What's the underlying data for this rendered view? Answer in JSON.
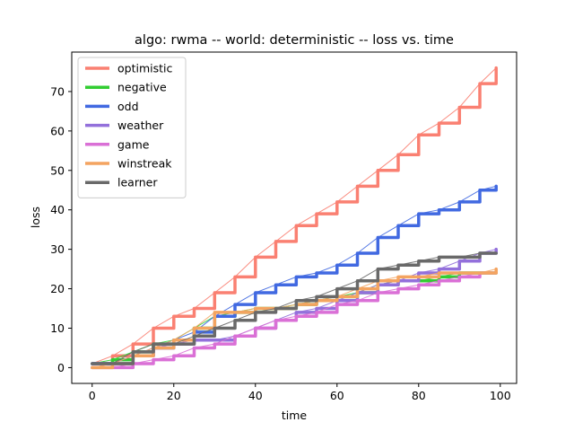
{
  "chart_data": {
    "type": "line",
    "title": "algo: rwma -- world: deterministic -- loss vs. time",
    "xlabel": "time",
    "ylabel": "loss",
    "xlim": [
      -5,
      104
    ],
    "ylim": [
      -4,
      80
    ],
    "xticks": [
      0,
      20,
      40,
      60,
      80,
      100
    ],
    "yticks": [
      0,
      10,
      20,
      30,
      40,
      50,
      60,
      70
    ],
    "grid": false,
    "legend_position": "upper-left",
    "series": [
      {
        "name": "optimistic",
        "color": "#fa8072",
        "points": [
          [
            0,
            1
          ],
          [
            5,
            3
          ],
          [
            10,
            6
          ],
          [
            15,
            10
          ],
          [
            20,
            13
          ],
          [
            25,
            15
          ],
          [
            30,
            19
          ],
          [
            35,
            23
          ],
          [
            40,
            28
          ],
          [
            45,
            32
          ],
          [
            50,
            36
          ],
          [
            55,
            39
          ],
          [
            60,
            42
          ],
          [
            65,
            46
          ],
          [
            70,
            50
          ],
          [
            75,
            54
          ],
          [
            80,
            59
          ],
          [
            85,
            62
          ],
          [
            90,
            66
          ],
          [
            95,
            72
          ],
          [
            99,
            76
          ]
        ]
      },
      {
        "name": "negative",
        "color": "#32cd32",
        "points": [
          [
            0,
            1
          ],
          [
            5,
            2
          ],
          [
            10,
            4
          ],
          [
            15,
            6
          ],
          [
            20,
            7
          ],
          [
            25,
            10
          ],
          [
            30,
            13
          ],
          [
            35,
            14
          ],
          [
            40,
            15
          ],
          [
            45,
            15
          ],
          [
            50,
            16
          ],
          [
            55,
            17
          ],
          [
            60,
            18
          ],
          [
            65,
            19
          ],
          [
            70,
            21
          ],
          [
            75,
            22
          ],
          [
            80,
            22
          ],
          [
            85,
            23
          ],
          [
            90,
            24
          ],
          [
            95,
            24
          ],
          [
            99,
            24
          ]
        ]
      },
      {
        "name": "odd",
        "color": "#4169e1",
        "points": [
          [
            0,
            1
          ],
          [
            5,
            1
          ],
          [
            10,
            3
          ],
          [
            15,
            5
          ],
          [
            20,
            7
          ],
          [
            25,
            9
          ],
          [
            30,
            13
          ],
          [
            35,
            16
          ],
          [
            40,
            19
          ],
          [
            45,
            21
          ],
          [
            50,
            23
          ],
          [
            55,
            24
          ],
          [
            60,
            26
          ],
          [
            65,
            29
          ],
          [
            70,
            33
          ],
          [
            75,
            36
          ],
          [
            80,
            39
          ],
          [
            85,
            40
          ],
          [
            90,
            42
          ],
          [
            95,
            45
          ],
          [
            99,
            46
          ]
        ]
      },
      {
        "name": "weather",
        "color": "#9370db",
        "points": [
          [
            0,
            1
          ],
          [
            5,
            1
          ],
          [
            10,
            3
          ],
          [
            15,
            5
          ],
          [
            20,
            6
          ],
          [
            25,
            7
          ],
          [
            30,
            7
          ],
          [
            35,
            8
          ],
          [
            40,
            10
          ],
          [
            45,
            12
          ],
          [
            50,
            14
          ],
          [
            55,
            15
          ],
          [
            60,
            17
          ],
          [
            65,
            19
          ],
          [
            70,
            21
          ],
          [
            75,
            22
          ],
          [
            80,
            24
          ],
          [
            85,
            25
          ],
          [
            90,
            27
          ],
          [
            95,
            29
          ],
          [
            99,
            30
          ]
        ]
      },
      {
        "name": "game",
        "color": "#da70d6",
        "points": [
          [
            0,
            0
          ],
          [
            5,
            0
          ],
          [
            10,
            1
          ],
          [
            15,
            2
          ],
          [
            20,
            3
          ],
          [
            25,
            5
          ],
          [
            30,
            6
          ],
          [
            35,
            8
          ],
          [
            40,
            10
          ],
          [
            45,
            12
          ],
          [
            50,
            13
          ],
          [
            55,
            14
          ],
          [
            60,
            16
          ],
          [
            65,
            17
          ],
          [
            70,
            19
          ],
          [
            75,
            20
          ],
          [
            80,
            21
          ],
          [
            85,
            22
          ],
          [
            90,
            23
          ],
          [
            95,
            24
          ],
          [
            99,
            24
          ]
        ]
      },
      {
        "name": "winstreak",
        "color": "#f4a460",
        "points": [
          [
            0,
            0
          ],
          [
            5,
            1
          ],
          [
            10,
            3
          ],
          [
            15,
            5
          ],
          [
            20,
            7
          ],
          [
            25,
            10
          ],
          [
            30,
            14
          ],
          [
            35,
            14
          ],
          [
            40,
            15
          ],
          [
            45,
            15
          ],
          [
            50,
            16
          ],
          [
            55,
            17
          ],
          [
            60,
            18
          ],
          [
            65,
            20
          ],
          [
            70,
            22
          ],
          [
            75,
            23
          ],
          [
            80,
            23
          ],
          [
            85,
            24
          ],
          [
            90,
            24
          ],
          [
            95,
            24
          ],
          [
            99,
            25
          ]
        ]
      },
      {
        "name": "learner",
        "color": "#696969",
        "points": [
          [
            0,
            1
          ],
          [
            5,
            1
          ],
          [
            10,
            4
          ],
          [
            15,
            6
          ],
          [
            20,
            6
          ],
          [
            25,
            8
          ],
          [
            30,
            10
          ],
          [
            35,
            12
          ],
          [
            40,
            14
          ],
          [
            45,
            15
          ],
          [
            50,
            17
          ],
          [
            55,
            18
          ],
          [
            60,
            20
          ],
          [
            65,
            22
          ],
          [
            70,
            25
          ],
          [
            75,
            26
          ],
          [
            80,
            27
          ],
          [
            85,
            28
          ],
          [
            90,
            28
          ],
          [
            95,
            29
          ],
          [
            99,
            29
          ]
        ]
      }
    ]
  }
}
